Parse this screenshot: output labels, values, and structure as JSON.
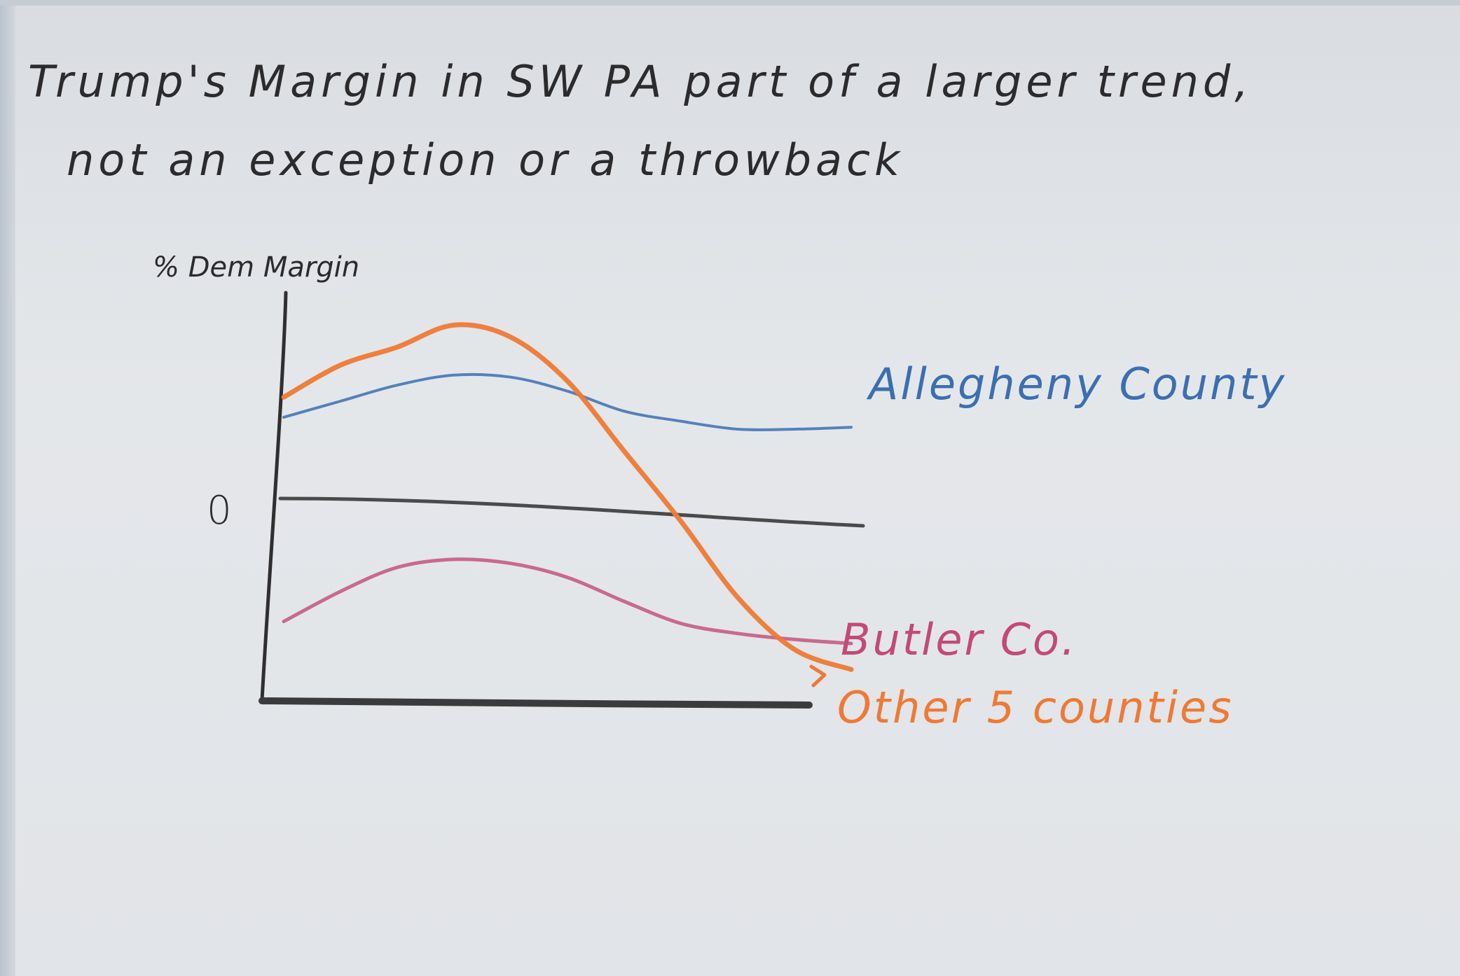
{
  "chart_data": {
    "type": "line",
    "title": "Trump's Margin in SW PA part of a larger trend, not an exception or a throwback",
    "ylabel": "% Dem Margin",
    "xlabel": "",
    "y_ticks": [
      "0"
    ],
    "x": [
      0,
      1,
      2,
      3,
      4,
      5,
      6,
      7,
      8,
      9,
      10
    ],
    "ylim": [
      -1.0,
      1.05
    ],
    "grid": false,
    "legend": "direct labels at line ends",
    "series": [
      {
        "name": "Allegheny County",
        "color": "#3b6fb0",
        "values": [
          0.42,
          0.5,
          0.58,
          0.63,
          0.62,
          0.55,
          0.45,
          0.4,
          0.36,
          0.36,
          0.37
        ]
      },
      {
        "name": "Butler Co.",
        "color": "#c24a77",
        "values": [
          -0.6,
          -0.45,
          -0.33,
          -0.29,
          -0.31,
          -0.38,
          -0.5,
          -0.61,
          -0.66,
          -0.69,
          -0.71
        ]
      },
      {
        "name": "Other 5 counties",
        "color": "#ee7a35",
        "values": [
          0.52,
          0.68,
          0.77,
          0.88,
          0.82,
          0.6,
          0.25,
          -0.1,
          -0.48,
          -0.74,
          -0.84
        ]
      }
    ]
  }
}
